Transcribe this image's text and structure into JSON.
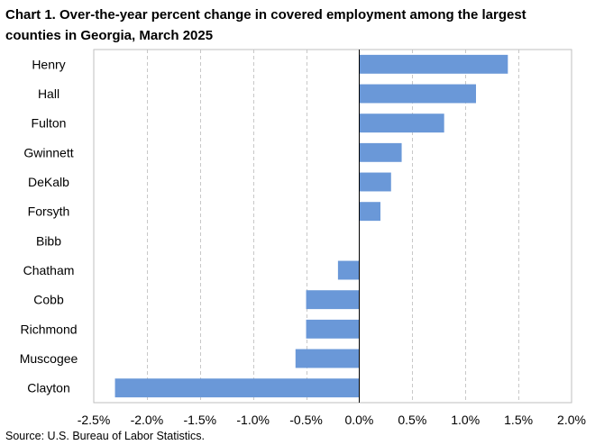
{
  "title": "Chart 1. Over-the-year percent change in covered employment among the largest counties in Georgia, March 2025",
  "source": "Source: U.S. Bureau of Labor Statistics.",
  "chart_data": {
    "type": "bar",
    "orientation": "horizontal",
    "categories": [
      "Henry",
      "Hall",
      "Fulton",
      "Gwinnett",
      "DeKalb",
      "Forsyth",
      "Bibb",
      "Chatham",
      "Cobb",
      "Richmond",
      "Muscogee",
      "Clayton"
    ],
    "values": [
      1.4,
      1.1,
      0.8,
      0.4,
      0.3,
      0.2,
      0.0,
      -0.2,
      -0.5,
      -0.5,
      -0.6,
      -2.3
    ],
    "xlim": [
      -2.5,
      2.0
    ],
    "xticks": [
      -2.5,
      -2.0,
      -1.5,
      -1.0,
      -0.5,
      0.0,
      0.5,
      1.0,
      1.5,
      2.0
    ],
    "xtick_labels": [
      "-2.5%",
      "-2.0%",
      "-1.5%",
      "-1.0%",
      "-0.5%",
      "0.0%",
      "0.5%",
      "1.0%",
      "1.5%",
      "2.0%"
    ],
    "grid": "vertical dashed",
    "bar_color": "#6a98d8",
    "grid_color": "#c8c8c8"
  }
}
